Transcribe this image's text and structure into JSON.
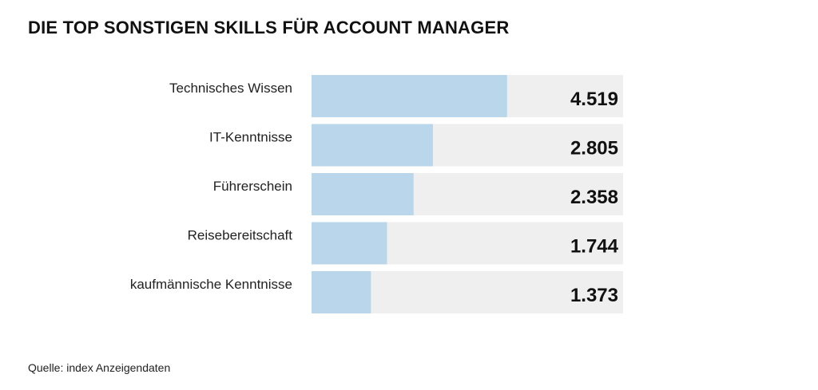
{
  "title": "DIE TOP SONSTIGEN SKILLS FÜR ACCOUNT MANAGER",
  "source": "Quelle: index Anzeigendaten",
  "colors": {
    "bar": "#b9d6ea",
    "track": "#efeff0",
    "label": "#222222",
    "value": "#111111"
  },
  "chart_data": {
    "type": "bar",
    "orientation": "horizontal",
    "categories": [
      "Technisches Wissen",
      "IT-Kenntnisse",
      "Führerschein",
      "Reisebereitschaft",
      "kaufmännische Kenntnisse"
    ],
    "values": [
      4519,
      2805,
      2358,
      1744,
      1373
    ],
    "value_labels": [
      "4.519",
      "2.805",
      "2.358",
      "1.744",
      "1.373"
    ],
    "xlim": [
      0,
      7200
    ],
    "grid": false,
    "legend": "none"
  }
}
